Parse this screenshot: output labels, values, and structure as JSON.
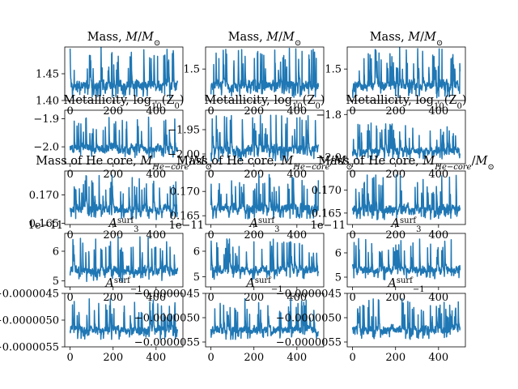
{
  "chart_data": [
    {
      "type": "line",
      "row": 0,
      "col": 0,
      "title": "Mass, $M/M_{\\odot}$",
      "ylim": [
        1.4,
        1.5
      ],
      "yticks": [
        1.4,
        1.45
      ],
      "ytick_labels": [
        "1.40",
        "1.45"
      ],
      "xlim": [
        -25,
        525
      ],
      "xticks": [
        0,
        200,
        400
      ],
      "xtick_labels": [
        "0",
        "200",
        "400"
      ],
      "n_points": 501,
      "approx_range": [
        1.4,
        1.5
      ],
      "seed": 11
    },
    {
      "type": "line",
      "row": 0,
      "col": 1,
      "title": "Mass, $M/M_{\\odot}$",
      "ylim": [
        1.4,
        1.57
      ],
      "yticks": [
        1.5
      ],
      "ytick_labels": [
        "1.5"
      ],
      "xlim": [
        -25,
        525
      ],
      "xticks": [
        0,
        200,
        400
      ],
      "xtick_labels": [
        "0",
        "200",
        "400"
      ],
      "n_points": 501,
      "approx_range": [
        1.4,
        1.57
      ],
      "seed": 12
    },
    {
      "type": "line",
      "row": 0,
      "col": 2,
      "title": "Mass, $M/M_{\\odot}$",
      "ylim": [
        1.4,
        1.57
      ],
      "yticks": [
        1.5
      ],
      "ytick_labels": [
        "1.5"
      ],
      "xlim": [
        -25,
        525
      ],
      "xticks": [
        0,
        200,
        400
      ],
      "xtick_labels": [
        "0",
        "200",
        "400"
      ],
      "n_points": 501,
      "approx_range": [
        1.4,
        1.57
      ],
      "seed": 13
    },
    {
      "type": "line",
      "row": 1,
      "col": 0,
      "title": "Metallicity, $\\log_{10}(Z_0)$",
      "ylim": [
        -2.06,
        -1.87
      ],
      "yticks": [
        -2.0,
        -1.9
      ],
      "ytick_labels": [
        "−2.0",
        "−1.9"
      ],
      "xlim": [
        -25,
        525
      ],
      "xticks": [
        0,
        200,
        400
      ],
      "xtick_labels": [
        "0",
        "200",
        "400"
      ],
      "n_points": 501,
      "approx_range": [
        -2.05,
        -1.89
      ],
      "seed": 21
    },
    {
      "type": "line",
      "row": 1,
      "col": 1,
      "title": "Metallicity, $\\log_{10}(Z_0)$",
      "ylim": [
        -2.02,
        -1.91
      ],
      "yticks": [
        -2.0,
        -1.95
      ],
      "ytick_labels": [
        "−2.00",
        "−1.95"
      ],
      "xlim": [
        -25,
        525
      ],
      "xticks": [
        0,
        200,
        400
      ],
      "xtick_labels": [
        "0",
        "200",
        "400"
      ],
      "n_points": 501,
      "approx_range": [
        -2.02,
        -1.92
      ],
      "seed": 22
    },
    {
      "type": "line",
      "row": 1,
      "col": 2,
      "title": "Metallicity, $\\log_{10}(Z_0)$",
      "ylim": [
        -2.03,
        -1.78
      ],
      "yticks": [
        -2.0,
        -1.8
      ],
      "ytick_labels": [
        "−2.0",
        "−1.8"
      ],
      "xlim": [
        -25,
        525
      ],
      "xticks": [
        0,
        200,
        400
      ],
      "xtick_labels": [
        "0",
        "200",
        "400"
      ],
      "n_points": 501,
      "approx_range": [
        -2.02,
        -1.84
      ],
      "seed": 23
    },
    {
      "type": "line",
      "row": 2,
      "col": 0,
      "title": "Mass of He core, $M_{He-core}/M_{\\odot}$",
      "ylim": [
        0.1648,
        0.1742
      ],
      "yticks": [
        0.165,
        0.17
      ],
      "ytick_labels": [
        "0.165",
        "0.170"
      ],
      "xlim": [
        -25,
        525
      ],
      "xticks": [
        0,
        200,
        400
      ],
      "xtick_labels": [
        "0",
        "200",
        "400"
      ],
      "n_points": 501,
      "approx_range": [
        0.1652,
        0.1735
      ],
      "seed": 31
    },
    {
      "type": "line",
      "row": 2,
      "col": 1,
      "title": "Mass of He core, $M_{He-core}/M_{\\odot}$",
      "ylim": [
        0.1632,
        0.1742
      ],
      "yticks": [
        0.165,
        0.17
      ],
      "ytick_labels": [
        "0.165",
        "0.170"
      ],
      "xlim": [
        -25,
        525
      ],
      "xticks": [
        0,
        200,
        400
      ],
      "xtick_labels": [
        "0",
        "200",
        "400"
      ],
      "n_points": 501,
      "approx_range": [
        0.1638,
        0.1735
      ],
      "seed": 32
    },
    {
      "type": "line",
      "row": 2,
      "col": 2,
      "title": "Mass of He core, $M_{He-core}/M_{\\odot}$",
      "ylim": [
        0.1625,
        0.1742
      ],
      "yticks": [
        0.165,
        0.17
      ],
      "ytick_labels": [
        "0.165",
        "0.170"
      ],
      "xlim": [
        -25,
        525
      ],
      "xticks": [
        0,
        200,
        400
      ],
      "xtick_labels": [
        "0",
        "200",
        "400"
      ],
      "n_points": 501,
      "approx_range": [
        0.163,
        0.1735
      ],
      "seed": 33
    },
    {
      "type": "line",
      "row": 3,
      "col": 0,
      "title": "$A_{3}^{\\rm surf}$",
      "offset_text": "1e−11",
      "ylim": [
        4.8,
        6.6
      ],
      "yticks": [
        5,
        6
      ],
      "ytick_labels": [
        "5",
        "6"
      ],
      "xlim": [
        -25,
        525
      ],
      "xticks": [
        0,
        200,
        400
      ],
      "xtick_labels": [
        "0",
        "200",
        "400"
      ],
      "n_points": 501,
      "approx_range": [
        4.9,
        6.5
      ],
      "seed": 41
    },
    {
      "type": "line",
      "row": 3,
      "col": 1,
      "title": "$A_{3}^{\\rm surf}$",
      "offset_text": "1e−11",
      "ylim": [
        4.6,
        6.7
      ],
      "yticks": [
        5,
        6
      ],
      "ytick_labels": [
        "5",
        "6"
      ],
      "xlim": [
        -25,
        525
      ],
      "xticks": [
        0,
        200,
        400
      ],
      "xtick_labels": [
        "0",
        "200",
        "400"
      ],
      "n_points": 501,
      "approx_range": [
        4.8,
        6.5
      ],
      "seed": 42
    },
    {
      "type": "line",
      "row": 3,
      "col": 2,
      "title": "$A_{3}^{\\rm surf}$",
      "offset_text": "1e−11",
      "ylim": [
        4.6,
        6.8
      ],
      "yticks": [
        5,
        6
      ],
      "ytick_labels": [
        "5",
        "6"
      ],
      "xlim": [
        -25,
        525
      ],
      "xticks": [
        0,
        200,
        400
      ],
      "xtick_labels": [
        "0",
        "200",
        "400"
      ],
      "n_points": 501,
      "approx_range": [
        4.8,
        6.6
      ],
      "seed": 43
    },
    {
      "type": "line",
      "row": 4,
      "col": 0,
      "title": "$A_{-1}^{\\rm surf}$",
      "ylim": [
        -5.5e-06,
        -4.5e-06
      ],
      "yticks": [
        -5.5e-06,
        -5e-06,
        -4.5e-06
      ],
      "ytick_labels": [
        "−0.0000055",
        "−0.0000050",
        "−0.0000045"
      ],
      "xlim": [
        -25,
        525
      ],
      "xticks": [
        0,
        200,
        400
      ],
      "xtick_labels": [
        "0",
        "200",
        "400"
      ],
      "n_points": 501,
      "approx_range": [
        -5.4e-06,
        -4.6e-06
      ],
      "seed": 51
    },
    {
      "type": "line",
      "row": 4,
      "col": 1,
      "title": "$A_{-1}^{\\rm surf}$",
      "ylim": [
        -5.6e-06,
        -4.5e-06
      ],
      "yticks": [
        -5.5e-06,
        -5e-06,
        -4.5e-06
      ],
      "ytick_labels": [
        "−0.0000055",
        "−0.0000050",
        "−0.0000045"
      ],
      "xlim": [
        -25,
        525
      ],
      "xticks": [
        0,
        200,
        400
      ],
      "xtick_labels": [
        "0",
        "200",
        "400"
      ],
      "n_points": 501,
      "approx_range": [
        -5.5e-06,
        -4.6e-06
      ],
      "seed": 52
    },
    {
      "type": "line",
      "row": 4,
      "col": 2,
      "title": "$A_{-1}^{\\rm surf}$",
      "ylim": [
        -5.6e-06,
        -4.5e-06
      ],
      "yticks": [
        -5.5e-06,
        -5e-06,
        -4.5e-06
      ],
      "ytick_labels": [
        "−0.0000055",
        "−0.0000050",
        "−0.0000045"
      ],
      "xlim": [
        -25,
        525
      ],
      "xticks": [
        0,
        200,
        400
      ],
      "xtick_labels": [
        "0",
        "200",
        "400"
      ],
      "n_points": 501,
      "approx_range": [
        -5.5e-06,
        -4.6e-06
      ],
      "seed": 53
    }
  ],
  "style": {
    "line_color": "#1f77b4",
    "axis_color": "#000000",
    "background": "#ffffff"
  },
  "titles": {
    "mass": "Mass, M/M",
    "metallicity": "Metallicity, log",
    "metallicity_sub": "10",
    "metallicity_arg": "(Z",
    "he_core_pre": "Mass of He core, M",
    "he_core_sub": "He−core",
    "he_core_post": "/M",
    "a3": "A",
    "a3_sub": "3",
    "a3_sup": "surf",
    "am1": "A",
    "am1_sub": "−1",
    "am1_sup": "surf",
    "sun": "⊙",
    "zero": "0",
    "close": ")"
  }
}
